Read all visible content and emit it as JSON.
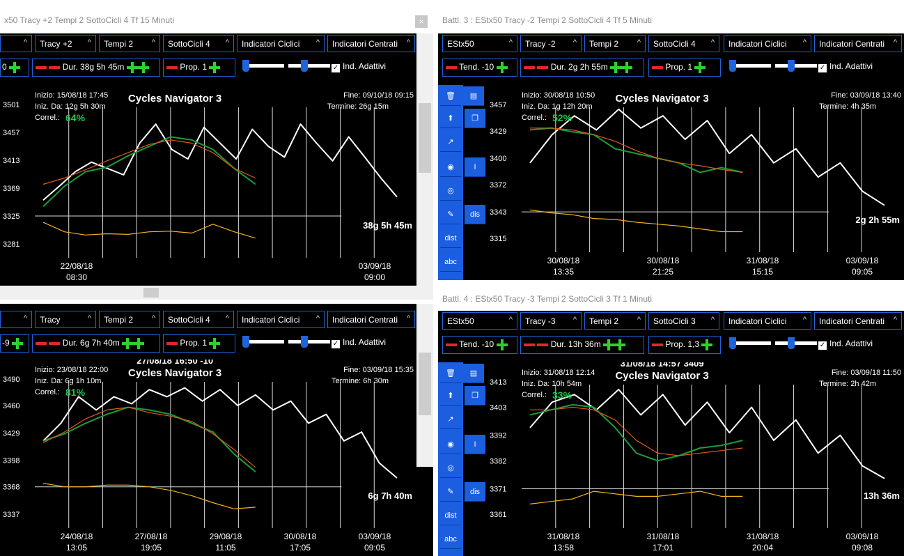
{
  "common": {
    "dropdown_caret": "^",
    "ind_adattivi": "Ind. Adattivi",
    "indicatori_ciclici": "Indicatori Ciclici",
    "indicatori_centrati": "Indicatori Centrati",
    "inizio_label": "Inizio:",
    "iniz_da_label": "Iniz. Da:",
    "correl_label": "Correl.:",
    "fine_label": "Fine:",
    "termine_label": "Termine:",
    "chart_title": "Cycles Navigator 3",
    "colors": {
      "price": "#ffffff",
      "fit_green": "#1a9e3a",
      "trend_orange": "#e05a1a",
      "oscillator": "#f2b320",
      "accent_blue": "#1f64d9"
    }
  },
  "panels": [
    {
      "id": "tl",
      "title": "x50 Tracy +2 Tempi 2 SottoCicli 4 Tf 15 Minuti",
      "dropdowns": [
        "",
        "Tracy +2",
        "Tempi 2",
        "SottoCicli 4"
      ],
      "tend_label": "0",
      "dur_label": "Dur. 38g 5h 45m",
      "prop_label": "Prop. 1",
      "crosshair_text": "",
      "inizio": "15/08/18 17:45",
      "iniz_da": "12g 5h 30m",
      "correl": "64%",
      "fine": "09/10/18 09:15",
      "termine": "26g 15m",
      "remaining": "38g 5h 45m",
      "chart_data": {
        "type": "line",
        "y_ticks": [
          "3501",
          "3457",
          "3413",
          "3369",
          "3325",
          "3281"
        ],
        "x_ticks": [
          {
            "date": "22/08/18",
            "time": "08:30"
          },
          {
            "date": "03/09/18",
            "time": "09:00"
          }
        ],
        "series": [
          {
            "values": [
              3350,
              3372,
              3395,
              3410,
              3400,
              3390,
              3440,
              3470,
              3430,
              3415,
              3465,
              3440,
              3415,
              3462,
              3435,
              3418,
              3470,
              3440,
              3412,
              3450,
              3418,
              3385,
              3355
            ]
          },
          {
            "values": [
              3340,
              3372,
              3395,
              3402,
              3420,
              3435,
              3450,
              3445,
              3430,
              3400,
              3375
            ]
          },
          {
            "values": [
              3375,
              3385,
              3398,
              3412,
              3425,
              3438,
              3445,
              3440,
              3425,
              3400,
              3385
            ]
          },
          {
            "values": [
              3315,
              3300,
              3295,
              3297,
              3296,
              3300,
              3301,
              3298,
              3312,
              3300,
              3290
            ]
          }
        ]
      }
    },
    {
      "id": "tr",
      "title": "Battl. 3 : EStx50 Tracy -2 Tempi 2 SottoCicli 4 Tf 5 Minuti",
      "dropdowns": [
        "EStx50",
        "Tracy -2",
        "Tempi 2",
        "SottoCicli 4"
      ],
      "tend_label": "Tend. -10",
      "dur_label": "Dur. 2g 2h 55m",
      "prop_label": "Prop. 1",
      "crosshair_text": "",
      "inizio": "30/08/18 10:50",
      "iniz_da": "1g 12h 20m",
      "correl": "52%",
      "fine": "03/09/18 13:40",
      "termine": "4h 35m",
      "remaining": "2g 2h 55m",
      "chart_data": {
        "type": "line",
        "y_ticks": [
          "3457",
          "3429",
          "3400",
          "3372",
          "3343",
          "3315"
        ],
        "x_ticks": [
          {
            "date": "30/08/18",
            "time": "13:35"
          },
          {
            "date": "30/08/18",
            "time": "21:25"
          },
          {
            "date": "31/08/18",
            "time": "15:15"
          },
          {
            "date": "03/09/18",
            "time": "09:05"
          }
        ],
        "series": [
          {
            "values": [
              3395,
              3425,
              3445,
              3430,
              3452,
              3432,
              3445,
              3420,
              3440,
              3405,
              3425,
              3395,
              3410,
              3380,
              3395,
              3365,
              3350
            ]
          },
          {
            "values": [
              3430,
              3432,
              3428,
              3425,
              3410,
              3405,
              3400,
              3395,
              3385,
              3390,
              3385
            ]
          },
          {
            "values": [
              3432,
              3432,
              3430,
              3425,
              3418,
              3408,
              3400,
              3395,
              3392,
              3388,
              3385
            ]
          },
          {
            "values": [
              3345,
              3342,
              3340,
              3336,
              3335,
              3332,
              3330,
              3328,
              3325,
              3322,
              3322
            ]
          }
        ]
      }
    },
    {
      "id": "bl",
      "title": "",
      "dropdowns": [
        "",
        "Tracy",
        "Tempi 2",
        "SottoCicli 4"
      ],
      "tend_label": "-9",
      "dur_label": "Dur. 6g 7h 40m",
      "prop_label": "Prop. 1",
      "crosshair_text": "27/08/18 16:50 -10",
      "inizio": "23/08/18 22:00",
      "iniz_da": "6g 1h 10m",
      "correl": "81%",
      "fine": "03/09/18 15:35",
      "termine": "6h 30m",
      "remaining": "6g 7h 40m",
      "chart_data": {
        "type": "line",
        "y_ticks": [
          "3490",
          "3460",
          "3429",
          "3398",
          "3368",
          "3337"
        ],
        "x_ticks": [
          {
            "date": "24/08/18",
            "time": "13:05"
          },
          {
            "date": "27/08/18",
            "time": "19:05"
          },
          {
            "date": "29/08/18",
            "time": "11:05"
          },
          {
            "date": "30/08/18",
            "time": "17:05"
          },
          {
            "date": "03/09/18",
            "time": "09:05"
          }
        ],
        "series": [
          {
            "values": [
              3420,
              3440,
              3470,
              3455,
              3470,
              3462,
              3478,
              3470,
              3480,
              3465,
              3478,
              3460,
              3472,
              3455,
              3465,
              3440,
              3450,
              3420,
              3430,
              3395,
              3378
            ]
          },
          {
            "values": [
              3420,
              3428,
              3440,
              3450,
              3458,
              3455,
              3450,
              3440,
              3430,
              3405,
              3385
            ]
          },
          {
            "values": [
              3418,
              3430,
              3445,
              3455,
              3458,
              3452,
              3448,
              3442,
              3428,
              3410,
              3390
            ]
          },
          {
            "values": [
              3372,
              3368,
              3368,
              3370,
              3370,
              3368,
              3364,
              3358,
              3350,
              3343,
              3345
            ]
          }
        ]
      }
    },
    {
      "id": "br",
      "title": "Battl. 4 : EStx50 Tracy -3 Tempi 2 SottoCicli 3 Tf 1 Minuti",
      "dropdowns": [
        "EStx50",
        "Tracy -3",
        "Tempi 2",
        "SottoCicli 3"
      ],
      "tend_label": "Tend. -10",
      "dur_label": "Dur. 13h 36m",
      "prop_label": "Prop. 1,3",
      "crosshair_text": "31/08/18 14:57 3409",
      "inizio": "31/08/18 12:14",
      "iniz_da": "10h 54m",
      "correl": "33%",
      "fine": "03/09/18 11:50",
      "termine": "2h 42m",
      "remaining": "13h 36m",
      "chart_data": {
        "type": "line",
        "y_ticks": [
          "3413",
          "3403",
          "3392",
          "3382",
          "3371",
          "3361"
        ],
        "x_ticks": [
          {
            "date": "31/08/18",
            "time": "13:58"
          },
          {
            "date": "31/08/18",
            "time": "17:01"
          },
          {
            "date": "31/08/18",
            "time": "20:04"
          },
          {
            "date": "03/09/18",
            "time": "09:08"
          }
        ],
        "series": [
          {
            "values": [
              3395,
              3405,
              3408,
              3402,
              3410,
              3400,
              3408,
              3396,
              3405,
              3393,
              3403,
              3390,
              3398,
              3385,
              3392,
              3380,
              3375
            ]
          },
          {
            "values": [
              3400,
              3402,
              3404,
              3403,
              3395,
              3385,
              3382,
              3384,
              3387,
              3388,
              3390
            ]
          },
          {
            "values": [
              3402,
              3402,
              3403,
              3402,
              3398,
              3390,
              3385,
              3384,
              3385,
              3386,
              3387
            ]
          },
          {
            "values": [
              3365,
              3366,
              3367,
              3370,
              3369,
              3368,
              3368,
              3369,
              3370,
              3368,
              3368
            ]
          }
        ]
      }
    }
  ]
}
